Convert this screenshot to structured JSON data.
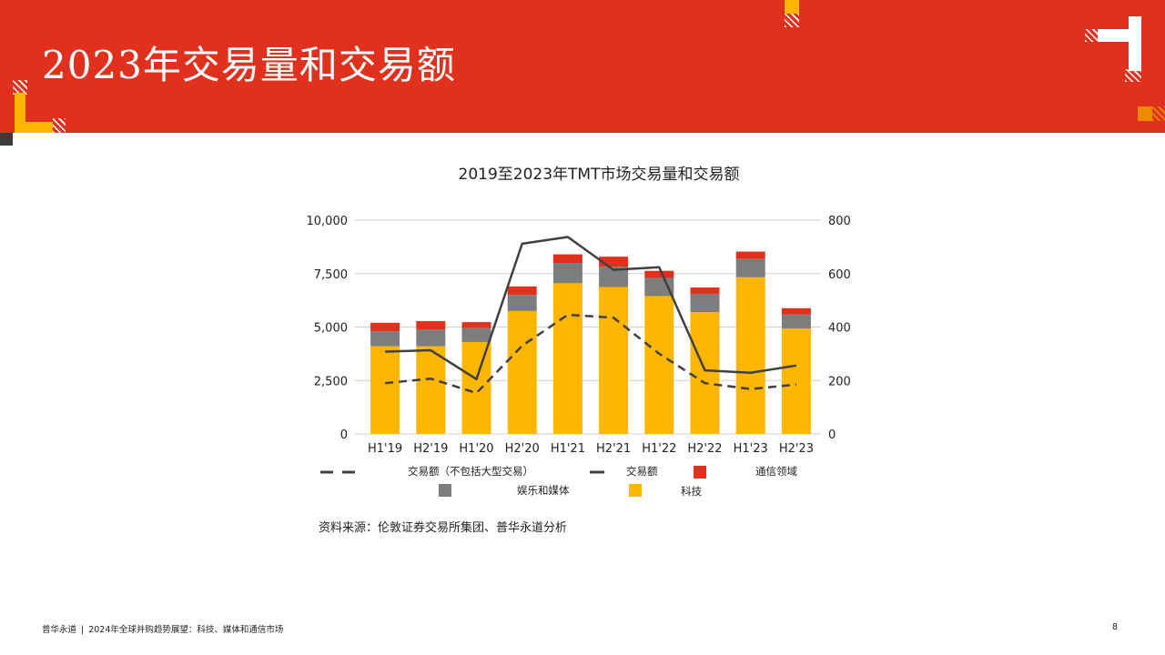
{
  "page": {
    "title": "2023年交易量和交易额",
    "source": "资料来源：伦敦证券交易所集团、普华永道分析",
    "footer_brand": "普华永道",
    "footer_separator": "|",
    "footer_report": "2024年全球并购趋势展望：科技、媒体和通信市场",
    "page_number": "8"
  },
  "colors": {
    "header": "#e0301e",
    "tech": "#ffb600",
    "media": "#7d7d7d",
    "telecom": "#e0301e",
    "line": "#404040",
    "accent_orange": "#eb8c00"
  },
  "chart_data": {
    "type": "bar",
    "title": "2019至2023年TMT市场交易量和交易额",
    "categories": [
      "H1'19",
      "H2'19",
      "H1'20",
      "H2'20",
      "H1'21",
      "H2'21",
      "H1'22",
      "H2'22",
      "H1'23",
      "H2'23"
    ],
    "stacked": true,
    "y_left": {
      "ylim": [
        0,
        10000
      ],
      "ticks": [
        "0",
        "2,500",
        "5,000",
        "7,500",
        "10,000"
      ]
    },
    "y_right": {
      "ylim": [
        0,
        800
      ],
      "ticks": [
        "0",
        "200",
        "400",
        "600",
        "800"
      ]
    },
    "grid": true,
    "legend_placement": "bottom",
    "series": [
      {
        "name": "科技",
        "kind": "bar",
        "axis": "left",
        "values": [
          4100,
          4100,
          4300,
          5750,
          7050,
          6870,
          6450,
          5700,
          7330,
          4930
        ]
      },
      {
        "name": "娱乐和媒体",
        "kind": "bar",
        "axis": "left",
        "values": [
          700,
          780,
          650,
          750,
          950,
          950,
          850,
          850,
          850,
          650
        ]
      },
      {
        "name": "通信领域",
        "kind": "bar",
        "axis": "left",
        "values": [
          400,
          400,
          280,
          400,
          400,
          470,
          330,
          300,
          350,
          300
        ]
      },
      {
        "name": "交易额",
        "kind": "line",
        "axis": "right",
        "values": [
          308,
          313,
          205,
          712,
          737,
          614,
          624,
          238,
          229,
          256
        ]
      },
      {
        "name": "交易额（不包括大型交易）",
        "kind": "dashed-line",
        "axis": "right",
        "values": [
          190,
          207,
          153,
          330,
          446,
          435,
          300,
          190,
          168,
          185
        ]
      }
    ],
    "legend": [
      {
        "name": "交易额（不包括大型交易）",
        "swatch": "dashed-line"
      },
      {
        "name": "交易额",
        "swatch": "line"
      },
      {
        "name": "通信领域",
        "swatch": "telecom"
      },
      {
        "name": "娱乐和媒体",
        "swatch": "media"
      },
      {
        "name": "科技",
        "swatch": "tech"
      }
    ]
  }
}
